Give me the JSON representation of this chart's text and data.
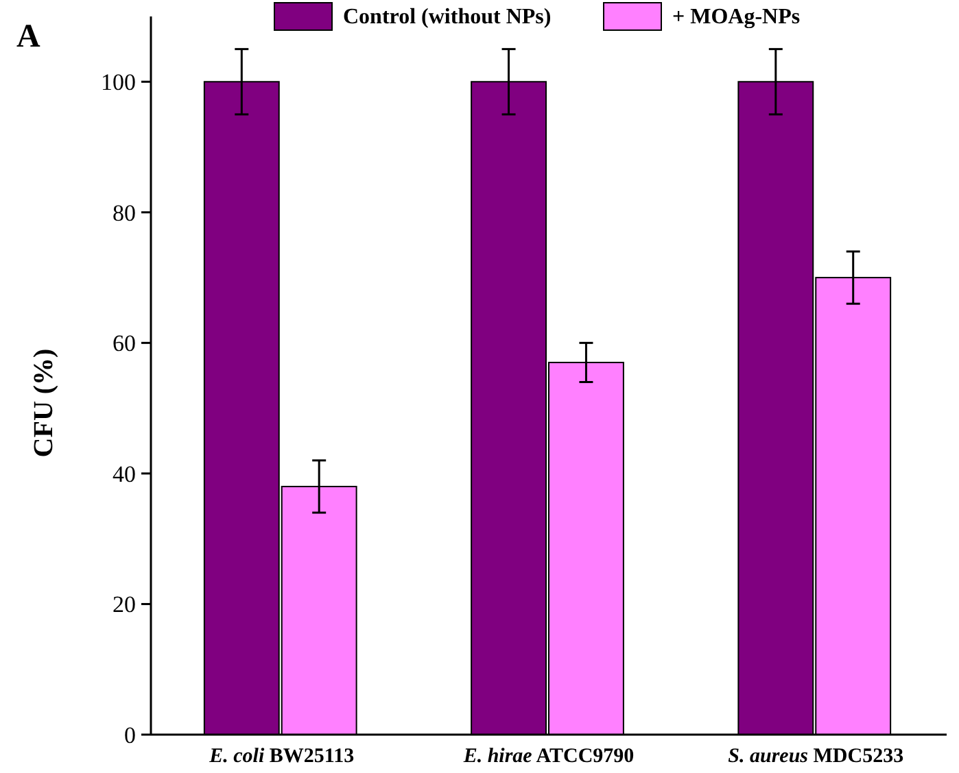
{
  "chart_data": {
    "type": "bar",
    "ylabel": "CFU (%)",
    "annotations": [
      "A"
    ],
    "categories": [
      "E. coli BW25113",
      "E. hirae ATCC9790",
      "S. aureus MDC5233"
    ],
    "series": [
      {
        "name": "Control (without NPs)",
        "color": "#800080",
        "values": [
          100,
          100,
          100
        ],
        "errors": [
          5,
          5,
          5
        ]
      },
      {
        "name": "+ MOAg-NPs",
        "color": "#ff80ff",
        "values": [
          38,
          57,
          70
        ],
        "errors": [
          4,
          3,
          4
        ]
      }
    ],
    "ylim": [
      0,
      110
    ],
    "yticks": [
      0,
      20,
      40,
      60,
      80,
      100
    ],
    "grid": false,
    "legend": "top"
  }
}
